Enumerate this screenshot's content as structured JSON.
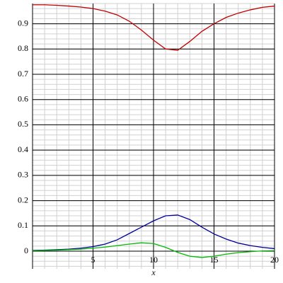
{
  "chart_data": {
    "type": "line",
    "x_label": "x",
    "x": [
      0,
      1,
      2,
      3,
      4,
      5,
      6,
      7,
      8,
      9,
      10,
      11,
      12,
      13,
      14,
      15,
      16,
      17,
      18,
      19,
      20
    ],
    "series": [
      {
        "color": "#c00000",
        "values": [
          0.975,
          0.975,
          0.973,
          0.97,
          0.966,
          0.96,
          0.95,
          0.935,
          0.91,
          0.875,
          0.835,
          0.8,
          0.795,
          0.83,
          0.87,
          0.9,
          0.925,
          0.942,
          0.955,
          0.965,
          0.97
        ]
      },
      {
        "color": "#000099",
        "values": [
          0.003,
          0.004,
          0.006,
          0.008,
          0.012,
          0.018,
          0.028,
          0.045,
          0.07,
          0.095,
          0.12,
          0.14,
          0.143,
          0.125,
          0.095,
          0.068,
          0.048,
          0.032,
          0.022,
          0.015,
          0.01
        ]
      },
      {
        "color": "#00bb00",
        "values": [
          0.002,
          0.003,
          0.004,
          0.006,
          0.008,
          0.012,
          0.016,
          0.022,
          0.028,
          0.033,
          0.03,
          0.015,
          -0.005,
          -0.02,
          -0.025,
          -0.02,
          -0.012,
          -0.006,
          -0.002,
          0.001,
          0.002
        ]
      }
    ],
    "xlim": [
      0,
      20
    ],
    "xticks": [
      5,
      10,
      15,
      20
    ],
    "ylim": [
      -0.07,
      0.98
    ],
    "yticks": [
      0,
      0.1,
      0.2,
      0.3,
      0.4,
      0.5,
      0.6,
      0.7,
      0.8,
      0.9
    ],
    "grid": true,
    "minor_grid": true
  }
}
